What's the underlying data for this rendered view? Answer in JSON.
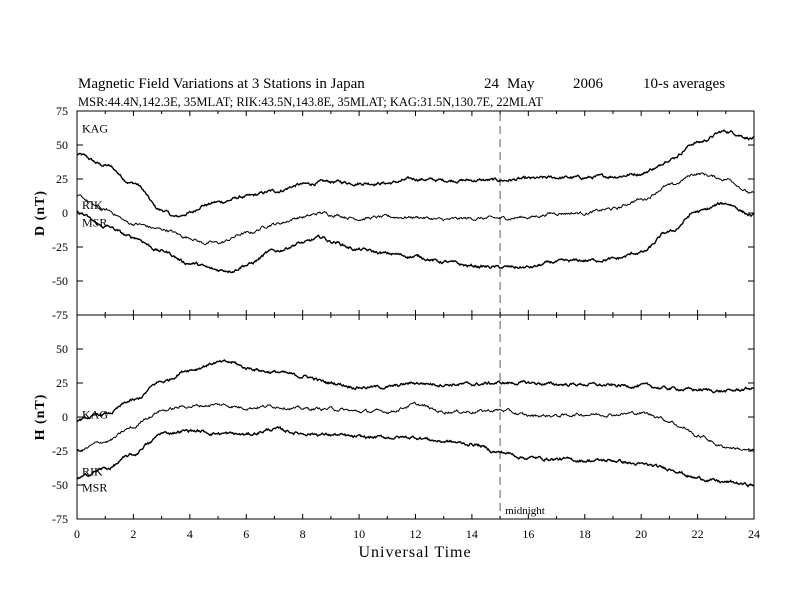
{
  "chart_data": {
    "type": "line",
    "title": "Magnetic Field Variations at 3 Stations in Japan",
    "date_day": "24",
    "date_month": "May",
    "date_year": "2006",
    "averaging": "10-s averages",
    "subtitle": "MSR:44.4N,142.3E, 35MLAT;   RIK:43.5N,143.8E, 35MLAT;   KAG:31.5N,130.7E, 22MLAT",
    "xlabel": "Universal Time",
    "xlim": [
      0,
      24
    ],
    "xticks": [
      0,
      2,
      4,
      6,
      8,
      10,
      12,
      14,
      16,
      18,
      20,
      22,
      24
    ],
    "xtick_labels": [
      "0",
      "2",
      "4",
      "6",
      "8",
      "10",
      "12",
      "14",
      "16",
      "18",
      "20",
      "22",
      "24"
    ],
    "midnight_ut": 15,
    "midnight_label": "midnight",
    "panels": [
      {
        "ylabel": "D (nT)",
        "ylim": [
          -75,
          75
        ],
        "yticks": [
          75,
          50,
          25,
          0,
          -25,
          -50,
          -75
        ],
        "ytick_labels": [
          "75",
          "50",
          "25",
          "0",
          "-25",
          "-50",
          "-75"
        ],
        "series": [
          {
            "name": "KAG",
            "color": "#000000",
            "x": [
              0,
              1,
              2,
              3,
              3.5,
              4,
              4.5,
              5,
              6,
              7,
              8,
              9,
              10,
              11,
              12,
              13,
              14,
              15,
              16,
              17,
              18,
              19,
              20,
              20.5,
              21,
              22,
              23,
              24
            ],
            "y": [
              43,
              35,
              22,
              2,
              -3,
              0,
              6,
              8,
              12,
              16,
              21,
              23,
              22,
              22,
              25,
              24,
              24,
              24,
              25,
              26,
              26,
              27,
              29,
              33,
              40,
              52,
              60,
              55
            ]
          },
          {
            "name": "RIK",
            "color": "#000000",
            "x": [
              0,
              1,
              2,
              3,
              4,
              4.5,
              5,
              6,
              7,
              8,
              8.7,
              9,
              10,
              11,
              12,
              13,
              14,
              15,
              16,
              17,
              18,
              19,
              20,
              21,
              22,
              23,
              24
            ],
            "y": [
              12,
              2,
              -8,
              -12,
              -18,
              -22,
              -22,
              -15,
              -8,
              -3,
              0,
              -1,
              -4,
              -3,
              -3,
              -5,
              -4,
              -4,
              -3,
              0,
              0,
              3,
              10,
              20,
              29,
              25,
              14
            ]
          },
          {
            "name": "MSR",
            "color": "#000000",
            "x": [
              0,
              1,
              2,
              3,
              4,
              5,
              5.5,
              6,
              7,
              8,
              8.7,
              9,
              10,
              11,
              12,
              13,
              14,
              15,
              16,
              17,
              18,
              19,
              20,
              21,
              22,
              23,
              24
            ],
            "y": [
              0,
              -10,
              -18,
              -28,
              -37,
              -42,
              -42,
              -38,
              -28,
              -22,
              -18,
              -21,
              -27,
              -30,
              -32,
              -36,
              -39,
              -40,
              -40,
              -36,
              -35,
              -34,
              -29,
              -14,
              1,
              7,
              -2
            ]
          }
        ]
      },
      {
        "ylabel": "H (nT)",
        "ylim": [
          -75,
          75
        ],
        "yticks": [
          50,
          25,
          0,
          -25,
          -50,
          -75
        ],
        "ytick_labels": [
          "50",
          "25",
          "0",
          "-25",
          "-50",
          "-75"
        ],
        "series": [
          {
            "name": "KAG",
            "color": "#000000",
            "x": [
              0,
              1,
              2,
              3,
              4,
              5,
              5.5,
              6,
              7,
              8,
              9,
              10,
              11,
              12,
              13,
              14,
              15,
              16,
              17,
              18,
              19,
              20,
              21,
              22,
              23,
              24
            ],
            "y": [
              -2,
              2,
              12,
              26,
              35,
              40,
              40,
              36,
              33,
              30,
              25,
              22,
              22,
              25,
              24,
              24,
              25,
              25,
              24,
              24,
              23,
              23,
              21,
              20,
              19,
              21
            ]
          },
          {
            "name": "RIK",
            "color": "#000000",
            "x": [
              0,
              1,
              2,
              2.5,
              3,
              4,
              5,
              6,
              7,
              8,
              9,
              10,
              11,
              12,
              13,
              14,
              15,
              16,
              17,
              18,
              19,
              20,
              20.5,
              21,
              21.5,
              22,
              23,
              24
            ],
            "y": [
              -25,
              -18,
              -8,
              0,
              5,
              8,
              9,
              7,
              8,
              6,
              6,
              4,
              4,
              9,
              4,
              4,
              5,
              1,
              1,
              2,
              2,
              3,
              1,
              -3,
              -8,
              -14,
              -22,
              -25
            ]
          },
          {
            "name": "MSR",
            "color": "#000000",
            "x": [
              0,
              1,
              2,
              2.5,
              3,
              4,
              5,
              6,
              7,
              8,
              9,
              10,
              11,
              12,
              13,
              14,
              15,
              16,
              17,
              18,
              19,
              20,
              21,
              22,
              23,
              24
            ],
            "y": [
              -45,
              -38,
              -28,
              -20,
              -12,
              -10,
              -12,
              -13,
              -9,
              -12,
              -13,
              -15,
              -15,
              -15,
              -18,
              -20,
              -26,
              -30,
              -31,
              -32,
              -32,
              -35,
              -38,
              -45,
              -48,
              -50
            ]
          }
        ]
      }
    ]
  }
}
